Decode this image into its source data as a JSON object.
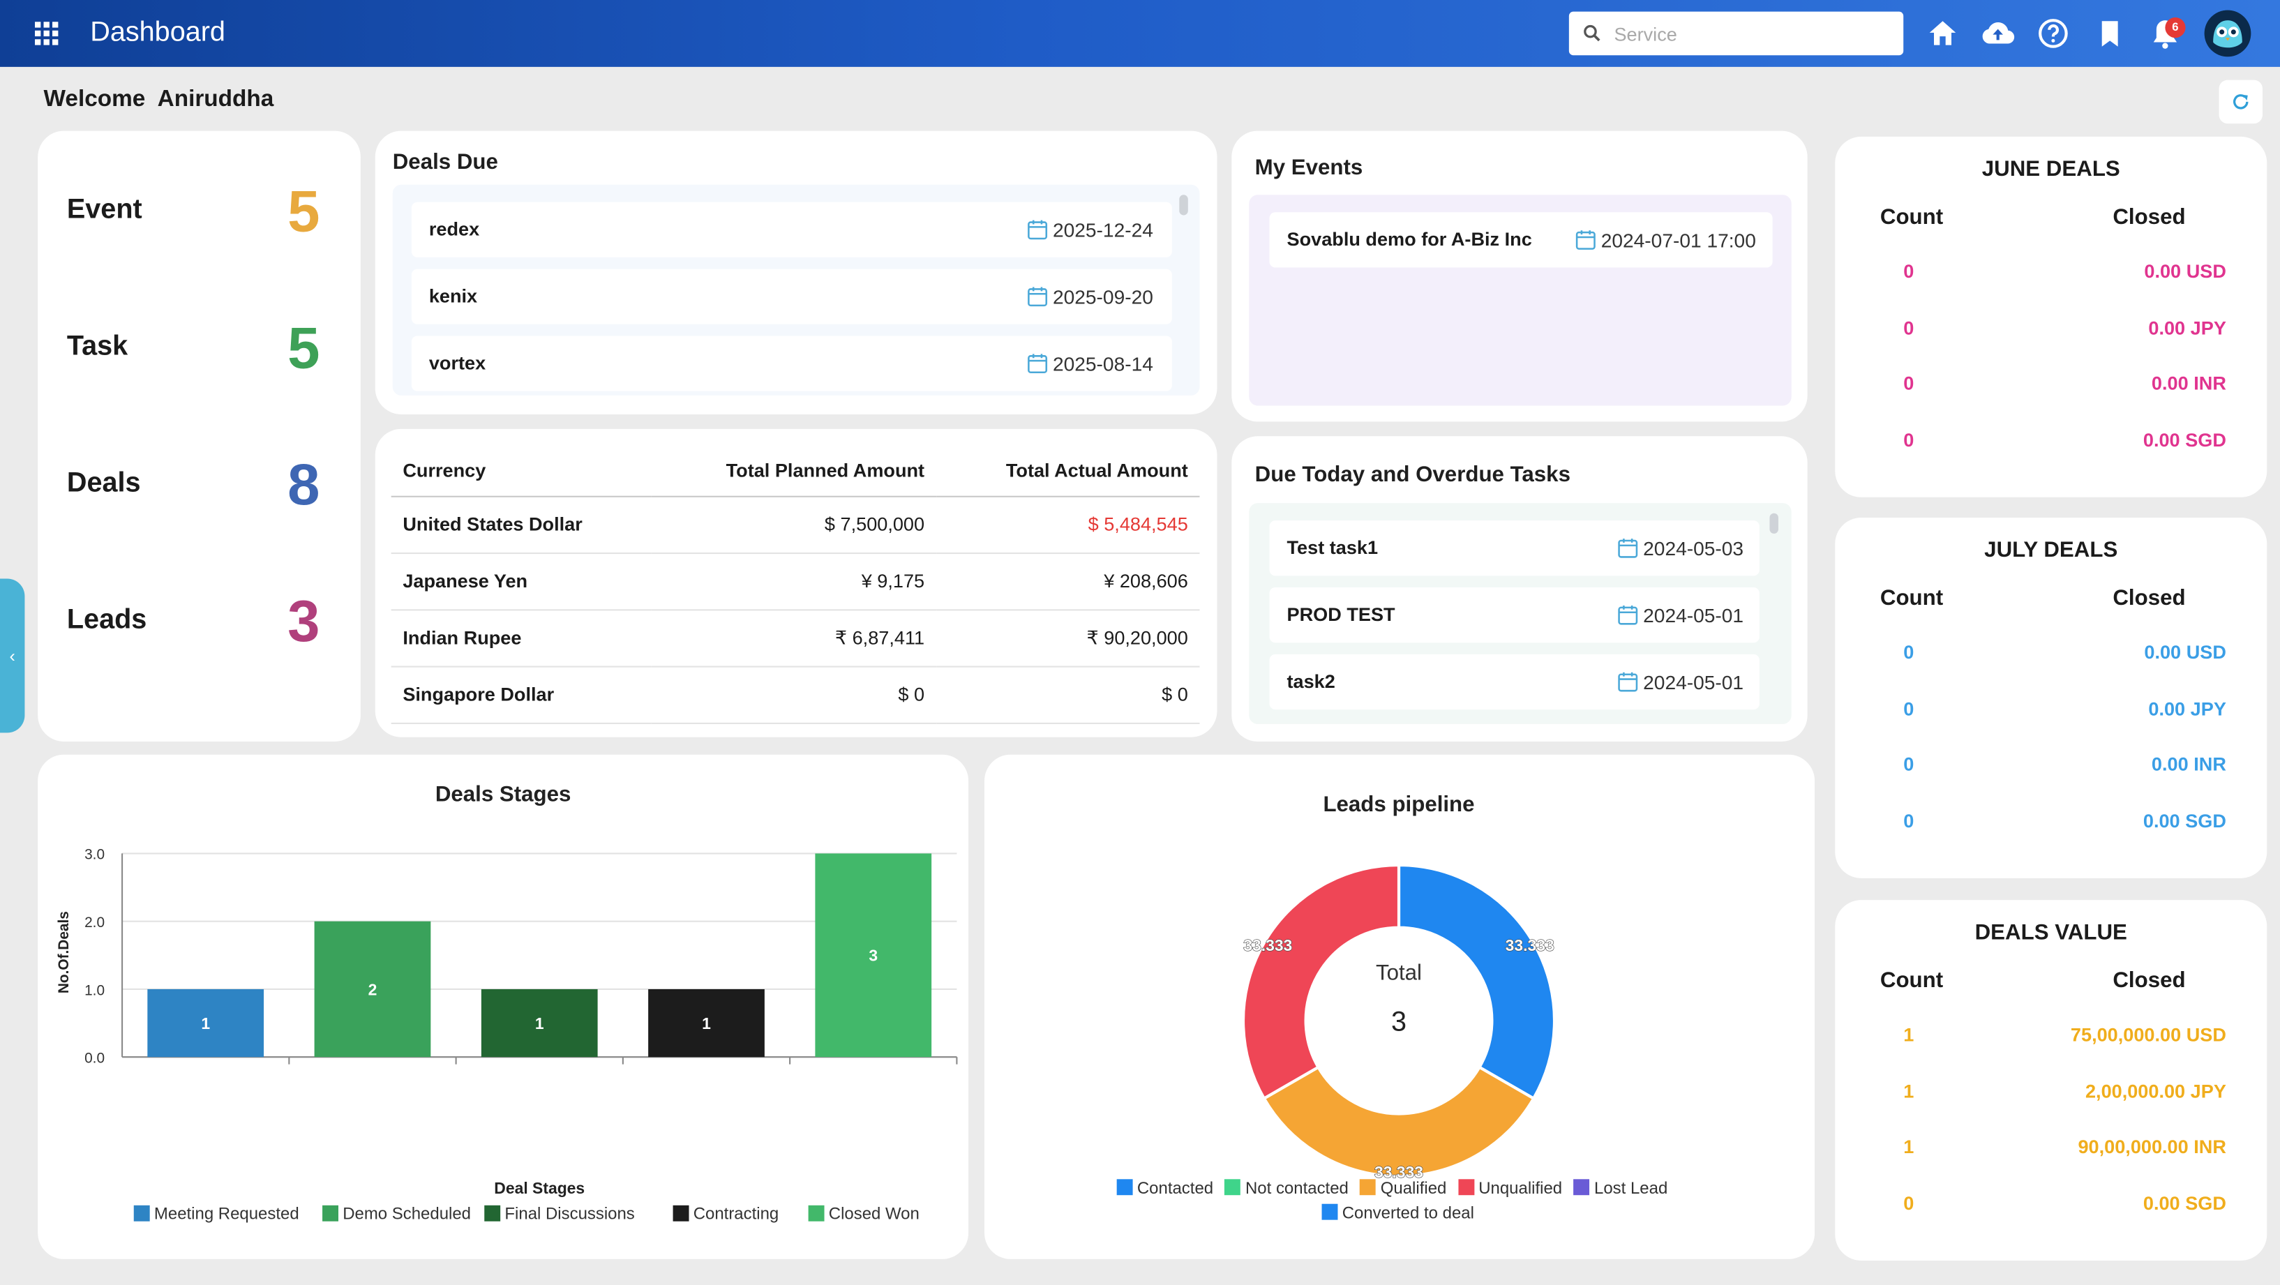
{
  "header": {
    "title": "Dashboard",
    "search_placeholder": "Service",
    "notification_count": "6",
    "icons": [
      "apps-grid-icon",
      "search-icon",
      "home-icon",
      "cloud-upload-icon",
      "help-icon",
      "bookmark-icon",
      "bell-icon",
      "avatar"
    ]
  },
  "welcome": {
    "label": "Welcome",
    "name": "Aniruddha"
  },
  "stats": [
    {
      "label": "Event",
      "value": "5",
      "color": "#e8a93e"
    },
    {
      "label": "Task",
      "value": "5",
      "color": "#3ea157"
    },
    {
      "label": "Deals",
      "value": "8",
      "color": "#3e66b3"
    },
    {
      "label": "Leads",
      "value": "3",
      "color": "#b0407c"
    }
  ],
  "deals_due": {
    "title": "Deals Due",
    "items": [
      {
        "name": "redex",
        "date": "2025-12-24"
      },
      {
        "name": "kenix",
        "date": "2025-09-20"
      },
      {
        "name": "vortex",
        "date": "2025-08-14"
      }
    ]
  },
  "my_events": {
    "title": "My Events",
    "items": [
      {
        "name": "Sovablu demo for A-Biz Inc",
        "date": "2024-07-01 17:00"
      }
    ]
  },
  "currency_table": {
    "headers": [
      "Currency",
      "Total Planned Amount",
      "Total Actual Amount"
    ],
    "rows": [
      {
        "currency": "United States Dollar",
        "planned": "$ 7,500,000",
        "actual": "$ 5,484,545",
        "actual_red": true
      },
      {
        "currency": "Japanese Yen",
        "planned": "¥ 9,175",
        "actual": "¥ 208,606",
        "actual_red": false
      },
      {
        "currency": "Indian Rupee",
        "planned": "₹ 6,87,411",
        "actual": "₹ 90,20,000",
        "actual_red": false
      },
      {
        "currency": "Singapore Dollar",
        "planned": "$ 0",
        "actual": "$ 0",
        "actual_red": false
      }
    ]
  },
  "tasks": {
    "title": "Due Today and Overdue Tasks",
    "items": [
      {
        "name": "Test task1",
        "date": "2024-05-03"
      },
      {
        "name": "PROD TEST",
        "date": "2024-05-01"
      },
      {
        "name": "task2",
        "date": "2024-05-01"
      }
    ]
  },
  "june_deals": {
    "title": "JUNE DEALS",
    "count_label": "Count",
    "closed_label": "Closed",
    "color": "#e0348f",
    "rows": [
      {
        "count": "0",
        "amount": "0.00",
        "currency": "USD"
      },
      {
        "count": "0",
        "amount": "0.00",
        "currency": "JPY"
      },
      {
        "count": "0",
        "amount": "0.00",
        "currency": "INR"
      },
      {
        "count": "0",
        "amount": "0.00",
        "currency": "SGD"
      }
    ]
  },
  "july_deals": {
    "title": "JULY DEALS",
    "count_label": "Count",
    "closed_label": "Closed",
    "color": "#3a9ee6",
    "rows": [
      {
        "count": "0",
        "amount": "0.00",
        "currency": "USD"
      },
      {
        "count": "0",
        "amount": "0.00",
        "currency": "JPY"
      },
      {
        "count": "0",
        "amount": "0.00",
        "currency": "INR"
      },
      {
        "count": "0",
        "amount": "0.00",
        "currency": "SGD"
      }
    ]
  },
  "deals_value": {
    "title": "DEALS VALUE",
    "count_label": "Count",
    "closed_label": "Closed",
    "color": "#f0ad1c",
    "rows": [
      {
        "count": "1",
        "amount": "75,00,000.00",
        "currency": "USD"
      },
      {
        "count": "1",
        "amount": "2,00,000.00",
        "currency": "JPY"
      },
      {
        "count": "1",
        "amount": "90,00,000.00",
        "currency": "INR"
      },
      {
        "count": "0",
        "amount": "0.00",
        "currency": "SGD"
      }
    ]
  },
  "chart_data": [
    {
      "type": "bar",
      "title": "Deals Stages",
      "xlabel": "Deal Stages",
      "ylabel": "No.Of.Deals",
      "ylim": [
        0,
        3
      ],
      "yticks": [
        "0.0",
        "1.0",
        "2.0",
        "3.0"
      ],
      "categories": [
        "Meeting Requested",
        "Demo Scheduled",
        "Final Discussions",
        "Contracting",
        "Closed Won"
      ],
      "values": [
        1,
        2,
        1,
        1,
        3
      ],
      "colors": [
        "#2e84c4",
        "#3aa25b",
        "#226632",
        "#1c1c1c",
        "#42b86a"
      ],
      "legend": "bottom",
      "grid": true
    },
    {
      "type": "pie",
      "title": "Leads pipeline",
      "center_label": "Total",
      "center_value": "3",
      "slices": [
        {
          "label": "Contacted",
          "value": 33.333,
          "color": "#1f87f0"
        },
        {
          "label": "Qualified",
          "value": 33.333,
          "color": "#f5a534"
        },
        {
          "label": "Unqualified",
          "value": 33.333,
          "color": "#ef4656"
        }
      ],
      "legend": [
        {
          "label": "Contacted",
          "color": "#1f87f0"
        },
        {
          "label": "Not contacted",
          "color": "#3fd48a"
        },
        {
          "label": "Qualified",
          "color": "#f5a534"
        },
        {
          "label": "Unqualified",
          "color": "#ef4656"
        },
        {
          "label": "Lost Lead",
          "color": "#6a5bd6"
        },
        {
          "label": "Converted to deal",
          "color": "#1f87f0"
        }
      ],
      "legend_position": "bottom"
    }
  ]
}
